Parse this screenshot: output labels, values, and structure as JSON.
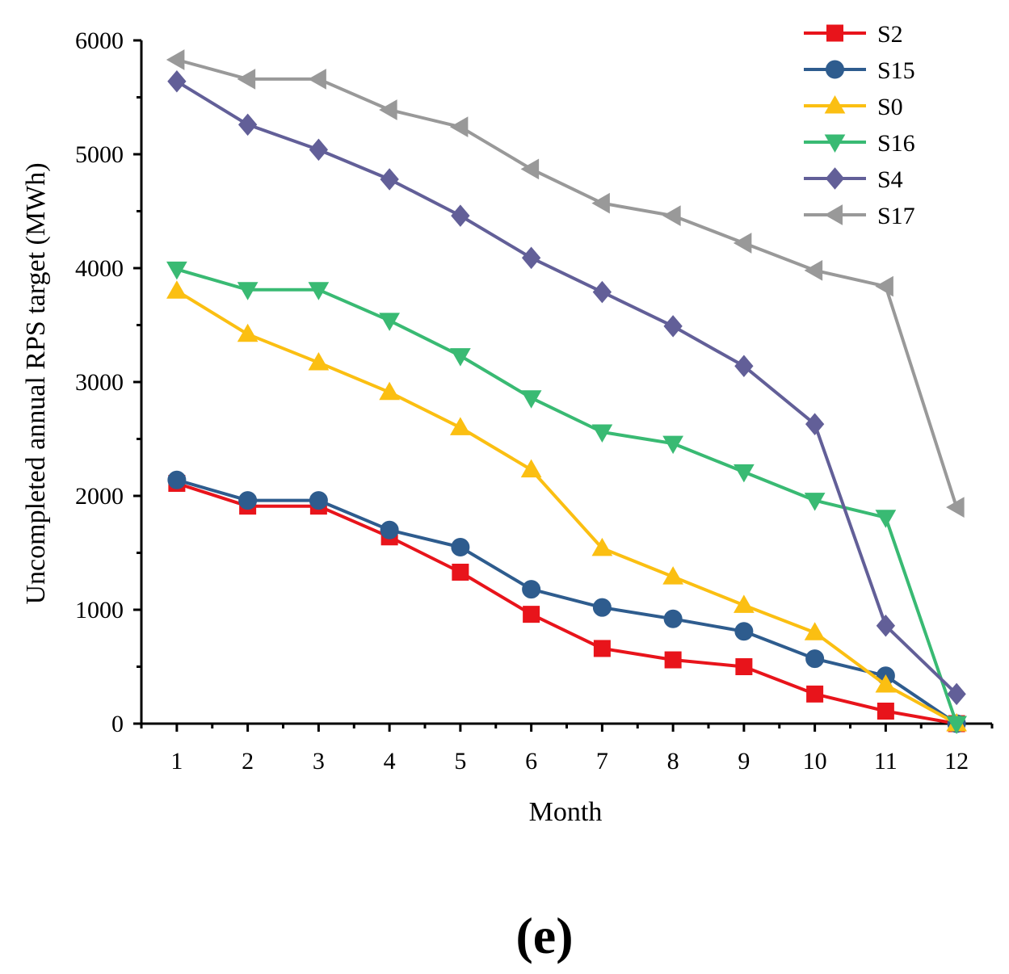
{
  "chart_data": {
    "type": "line",
    "xlabel": "Month",
    "ylabel": "Uncompleted annual RPS target (MWh)",
    "panel_label": "(e)",
    "x": [
      1,
      2,
      3,
      4,
      5,
      6,
      7,
      8,
      9,
      10,
      11,
      12
    ],
    "x_tick_labels": [
      "1",
      "2",
      "3",
      "4",
      "5",
      "6",
      "7",
      "8",
      "9",
      "10",
      "11",
      "12"
    ],
    "xlim": [
      0.5,
      12.5
    ],
    "ylim": [
      0,
      6000
    ],
    "y_ticks": [
      0,
      1000,
      2000,
      3000,
      4000,
      5000,
      6000
    ],
    "y_tick_labels": [
      "0",
      "1000",
      "2000",
      "3000",
      "4000",
      "5000",
      "6000"
    ],
    "grid": false,
    "legend_position": "top-right",
    "series": [
      {
        "name": "S2",
        "color": "#e8141b",
        "marker": "square",
        "values": [
          2110,
          1910,
          1910,
          1640,
          1330,
          960,
          660,
          560,
          500,
          260,
          110,
          0
        ]
      },
      {
        "name": "S15",
        "color": "#2e5c8e",
        "marker": "circle",
        "values": [
          2140,
          1960,
          1960,
          1700,
          1550,
          1180,
          1020,
          920,
          810,
          570,
          420,
          0
        ]
      },
      {
        "name": "S0",
        "color": "#fbbf12",
        "marker": "triangle-up",
        "values": [
          3800,
          3420,
          3170,
          2910,
          2600,
          2230,
          1540,
          1290,
          1040,
          800,
          340,
          0
        ]
      },
      {
        "name": "S16",
        "color": "#39ba73",
        "marker": "triangle-down",
        "values": [
          3990,
          3810,
          3810,
          3540,
          3230,
          2860,
          2560,
          2460,
          2210,
          1960,
          1810,
          0
        ]
      },
      {
        "name": "S4",
        "color": "#625f98",
        "marker": "diamond",
        "values": [
          5640,
          5260,
          5040,
          4780,
          4460,
          4090,
          3790,
          3490,
          3140,
          2630,
          860,
          260
        ]
      },
      {
        "name": "S17",
        "color": "#999999",
        "marker": "triangle-left",
        "values": [
          5830,
          5660,
          5660,
          5390,
          5240,
          4870,
          4570,
          4460,
          4220,
          3980,
          3840,
          1900
        ]
      }
    ]
  }
}
